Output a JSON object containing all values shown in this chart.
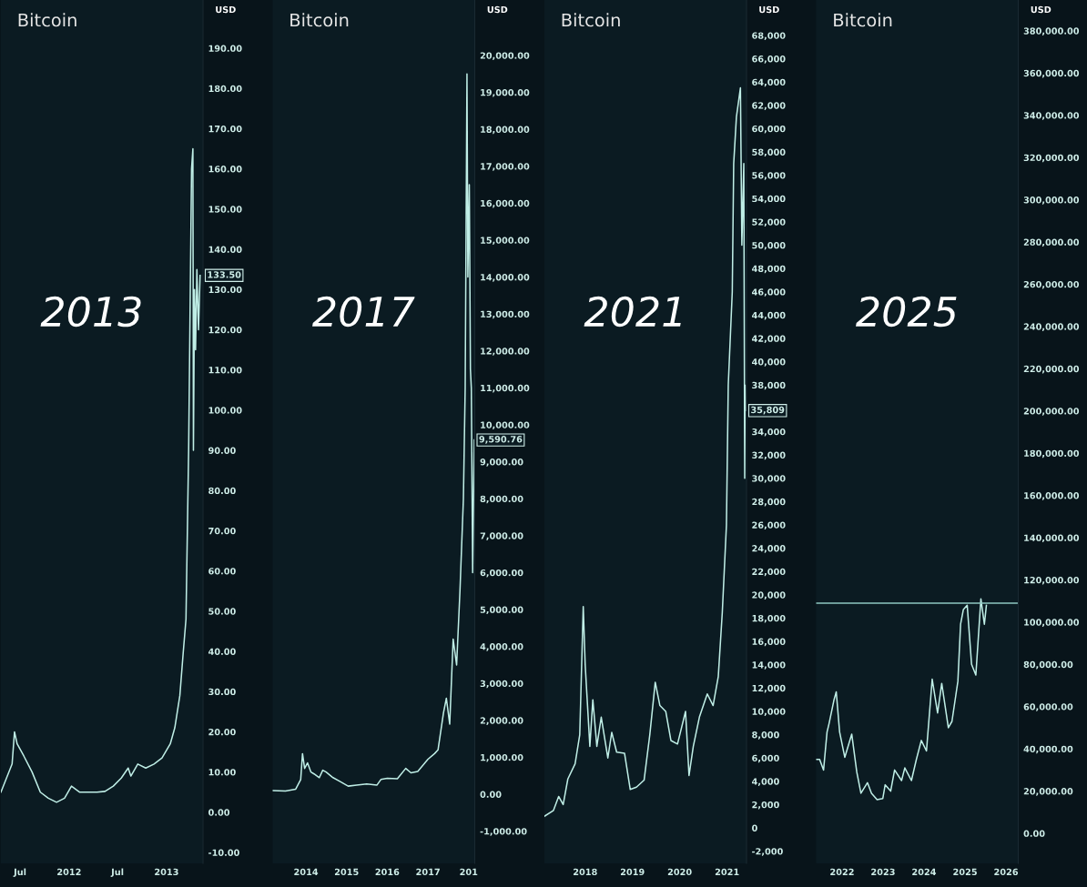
{
  "chart_data": [
    {
      "type": "line",
      "title": "Bitcoin",
      "ylabel": "USD",
      "color": "#bfeee6",
      "x": [
        "2011-04-20",
        "2011-06-01",
        "2011-06-10",
        "2011-06-20",
        "2011-07-15",
        "2011-08-15",
        "2011-09-15",
        "2011-10-15",
        "2011-11-15",
        "2011-12-15",
        "2012-01-10",
        "2012-02-10",
        "2012-03-15",
        "2012-04-15",
        "2012-05-15",
        "2012-06-15",
        "2012-07-15",
        "2012-08-10",
        "2012-08-20",
        "2012-09-15",
        "2012-10-15",
        "2012-11-15",
        "2012-12-15",
        "2013-01-15",
        "2013-02-01",
        "2013-02-20",
        "2013-03-05",
        "2013-03-15",
        "2013-03-25",
        "2013-04-01",
        "2013-04-05",
        "2013-04-10",
        "2013-04-12",
        "2013-04-16",
        "2013-04-20",
        "2013-04-25",
        "2013-05-01",
        "2013-05-07"
      ],
      "values": [
        5,
        12,
        20,
        17,
        14,
        10,
        5,
        3.5,
        2.5,
        3.5,
        6.5,
        5,
        5,
        5,
        5.2,
        6.5,
        8.5,
        11,
        9,
        12,
        11,
        12,
        13.5,
        17,
        21,
        29,
        40,
        48,
        90,
        135,
        160,
        165,
        90,
        130,
        115,
        135,
        120,
        133.5
      ],
      "xlim": [
        "2011-04-20",
        "2013-05-18"
      ],
      "ylim": [
        -12.7,
        202
      ],
      "xticks": [
        {
          "value": "2011-07-01",
          "label": "Jul"
        },
        {
          "value": "2012-01-01",
          "label": "2012"
        },
        {
          "value": "2012-07-01",
          "label": "Jul"
        },
        {
          "value": "2013-01-01",
          "label": "2013"
        }
      ],
      "yticks": [
        {
          "value": -10,
          "label": "-10.00"
        },
        {
          "value": 0,
          "label": "0.00"
        },
        {
          "value": 10,
          "label": "10.00"
        },
        {
          "value": 20,
          "label": "20.00"
        },
        {
          "value": 30,
          "label": "30.00"
        },
        {
          "value": 40,
          "label": "40.00"
        },
        {
          "value": 50,
          "label": "50.00"
        },
        {
          "value": 60,
          "label": "60.00"
        },
        {
          "value": 70,
          "label": "70.00"
        },
        {
          "value": 80,
          "label": "80.00"
        },
        {
          "value": 90,
          "label": "90.00"
        },
        {
          "value": 100,
          "label": "100.00"
        },
        {
          "value": 110,
          "label": "110.00"
        },
        {
          "value": 120,
          "label": "120.00"
        },
        {
          "value": 130,
          "label": "130.00"
        },
        {
          "value": 140,
          "label": "140.00"
        },
        {
          "value": 150,
          "label": "150.00"
        },
        {
          "value": 160,
          "label": "160.00"
        },
        {
          "value": 170,
          "label": "170.00"
        },
        {
          "value": 180,
          "label": "180.00"
        },
        {
          "value": 190,
          "label": "190.00"
        }
      ],
      "annotations": [
        "2013",
        {
          "text": "133.50",
          "x": "2013-05-07",
          "y": 133.5
        }
      ]
    },
    {
      "type": "line",
      "title": "Bitcoin",
      "ylabel": "USD",
      "color": "#bfeee6",
      "x": [
        "2013-03-08",
        "2013-07-01",
        "2013-10-01",
        "2013-11-15",
        "2013-12-01",
        "2013-12-20",
        "2014-01-15",
        "2014-02-15",
        "2014-03-15",
        "2014-05-01",
        "2014-06-01",
        "2014-07-01",
        "2014-09-01",
        "2014-11-01",
        "2015-01-15",
        "2015-04-01",
        "2015-07-01",
        "2015-10-01",
        "2015-11-05",
        "2016-01-01",
        "2016-04-01",
        "2016-06-15",
        "2016-08-01",
        "2016-10-01",
        "2017-01-01",
        "2017-03-01",
        "2017-04-01",
        "2017-05-20",
        "2017-06-15",
        "2017-07-15",
        "2017-08-15",
        "2017-09-15",
        "2017-10-15",
        "2017-11-15",
        "2017-12-01",
        "2017-12-17",
        "2017-12-25",
        "2018-01-07",
        "2018-01-17",
        "2018-01-25",
        "2018-02-06",
        "2018-02-20"
      ],
      "values": [
        100,
        90,
        140,
        400,
        1100,
        700,
        850,
        600,
        550,
        450,
        650,
        600,
        450,
        350,
        220,
        250,
        280,
        250,
        400,
        430,
        420,
        700,
        580,
        620,
        950,
        1100,
        1200,
        2200,
        2600,
        1900,
        4200,
        3500,
        5500,
        8000,
        11000,
        19500,
        14000,
        16500,
        11500,
        11000,
        6000,
        9590.76
      ],
      "xlim": [
        "2013-03-08",
        "2018-02-25"
      ],
      "ylim": [
        -1870,
        21500
      ],
      "xticks": [
        {
          "value": "2014-01-01",
          "label": "2014"
        },
        {
          "value": "2015-01-01",
          "label": "2015"
        },
        {
          "value": "2016-01-01",
          "label": "2016"
        },
        {
          "value": "2017-01-01",
          "label": "2017"
        },
        {
          "value": "2018-01-01",
          "label": "201"
        }
      ],
      "yticks": [
        {
          "value": -1000,
          "label": "-1,000.00"
        },
        {
          "value": 0,
          "label": "0.00"
        },
        {
          "value": 1000,
          "label": "1,000.00"
        },
        {
          "value": 2000,
          "label": "2,000.00"
        },
        {
          "value": 3000,
          "label": "3,000.00"
        },
        {
          "value": 4000,
          "label": "4,000.00"
        },
        {
          "value": 5000,
          "label": "5,000.00"
        },
        {
          "value": 6000,
          "label": "6,000.00"
        },
        {
          "value": 7000,
          "label": "7,000.00"
        },
        {
          "value": 8000,
          "label": "8,000.00"
        },
        {
          "value": 9000,
          "label": "9,000.00"
        },
        {
          "value": 10000,
          "label": "10,000.00"
        },
        {
          "value": 11000,
          "label": "11,000.00"
        },
        {
          "value": 12000,
          "label": "12,000.00"
        },
        {
          "value": 13000,
          "label": "13,000.00"
        },
        {
          "value": 14000,
          "label": "14,000.00"
        },
        {
          "value": 15000,
          "label": "15,000.00"
        },
        {
          "value": 16000,
          "label": "16,000.00"
        },
        {
          "value": 17000,
          "label": "17,000.00"
        },
        {
          "value": 18000,
          "label": "18,000.00"
        },
        {
          "value": 19000,
          "label": "19,000.00"
        },
        {
          "value": 20000,
          "label": "20,000.00"
        }
      ],
      "annotations": [
        "2017",
        {
          "text": "9,590.76",
          "x": "2018-02-20",
          "y": 9590.76
        }
      ]
    },
    {
      "type": "line",
      "title": "Bitcoin",
      "ylabel": "USD",
      "color": "#bfeee6",
      "x": [
        "2017-02-20",
        "2017-05-01",
        "2017-06-10",
        "2017-07-15",
        "2017-08-20",
        "2017-10-15",
        "2017-11-20",
        "2017-12-17",
        "2018-01-01",
        "2018-02-06",
        "2018-03-01",
        "2018-04-01",
        "2018-05-05",
        "2018-06-25",
        "2018-07-25",
        "2018-09-01",
        "2018-11-01",
        "2018-12-15",
        "2019-02-01",
        "2019-04-01",
        "2019-05-15",
        "2019-06-26",
        "2019-08-01",
        "2019-09-15",
        "2019-10-25",
        "2019-12-15",
        "2020-02-15",
        "2020-03-13",
        "2020-04-15",
        "2020-06-01",
        "2020-08-01",
        "2020-09-15",
        "2020-10-25",
        "2020-11-25",
        "2020-12-27",
        "2021-01-10",
        "2021-02-10",
        "2021-02-21",
        "2021-03-14",
        "2021-04-14",
        "2021-04-25",
        "2021-05-10",
        "2021-05-17",
        "2021-05-20",
        "2021-05-24"
      ],
      "values": [
        1000,
        1500,
        2700,
        2000,
        4200,
        5500,
        8000,
        19000,
        14000,
        7000,
        11000,
        7000,
        9500,
        6000,
        8200,
        6500,
        6400,
        3300,
        3500,
        4100,
        8000,
        12500,
        10500,
        10000,
        7500,
        7200,
        10000,
        4500,
        7000,
        9500,
        11500,
        10500,
        13000,
        18500,
        26000,
        38000,
        46000,
        57000,
        61000,
        63500,
        50000,
        57000,
        30000,
        38000,
        35809
      ],
      "xlim": [
        "2017-02-20",
        "2021-05-31"
      ],
      "ylim": [
        -3040,
        71040
      ],
      "xticks": [
        {
          "value": "2018-01-01",
          "label": "2018"
        },
        {
          "value": "2019-01-01",
          "label": "2019"
        },
        {
          "value": "2020-01-01",
          "label": "2020"
        },
        {
          "value": "2021-01-01",
          "label": "2021"
        }
      ],
      "yticks": [
        {
          "value": -2000,
          "label": "-2,000"
        },
        0,
        {
          "value": 2000,
          "label": "2,000"
        },
        {
          "value": 4000,
          "label": "4,000"
        },
        {
          "value": 6000,
          "label": "6,000"
        },
        {
          "value": 8000,
          "label": "8,000"
        },
        {
          "value": 10000,
          "label": "10,000"
        },
        {
          "value": 12000,
          "label": "12,000"
        },
        {
          "value": 14000,
          "label": "14,000"
        },
        {
          "value": 16000,
          "label": "16,000"
        },
        {
          "value": 18000,
          "label": "18,000"
        },
        {
          "value": 20000,
          "label": "20,000"
        },
        {
          "value": 22000,
          "label": "22,000"
        },
        {
          "value": 24000,
          "label": "24,000"
        },
        {
          "value": 26000,
          "label": "26,000"
        },
        {
          "value": 28000,
          "label": "28,000"
        },
        {
          "value": 30000,
          "label": "30,000"
        },
        {
          "value": 32000,
          "label": "32,000"
        },
        {
          "value": 34000,
          "label": "34,000"
        },
        {
          "value": 38000,
          "label": "38,000"
        },
        {
          "value": 40000,
          "label": "40,000"
        },
        {
          "value": 42000,
          "label": "42,000"
        },
        {
          "value": 44000,
          "label": "44,000"
        },
        {
          "value": 46000,
          "label": "46,000"
        },
        {
          "value": 48000,
          "label": "48,000"
        },
        {
          "value": 50000,
          "label": "50,000"
        },
        {
          "value": 52000,
          "label": "52,000"
        },
        {
          "value": 54000,
          "label": "54,000"
        },
        {
          "value": 56000,
          "label": "56,000"
        },
        {
          "value": 58000,
          "label": "58,000"
        },
        {
          "value": 60000,
          "label": "60,000"
        },
        {
          "value": 62000,
          "label": "62,000"
        },
        {
          "value": 64000,
          "label": "64,000"
        },
        {
          "value": 66000,
          "label": "66,000"
        },
        {
          "value": 68000,
          "label": "68,000"
        }
      ],
      "annotations": [
        "2021",
        {
          "text": "35,809",
          "x": "2021-05-24",
          "y": 35809
        }
      ]
    },
    {
      "type": "line",
      "title": "Bitcoin",
      "ylabel": "USD",
      "color": "#bfeee6",
      "x": [
        "2021-05-15",
        "2021-06-15",
        "2021-07-20",
        "2021-08-20",
        "2021-09-07",
        "2021-10-20",
        "2021-11-10",
        "2021-12-10",
        "2022-01-25",
        "2022-03-28",
        "2022-05-12",
        "2022-06-18",
        "2022-08-15",
        "2022-09-20",
        "2022-11-09",
        "2022-12-30",
        "2023-01-20",
        "2023-03-10",
        "2023-04-14",
        "2023-06-15",
        "2023-07-14",
        "2023-09-11",
        "2023-10-25",
        "2023-12-08",
        "2024-01-23",
        "2024-03-14",
        "2024-05-01",
        "2024-06-07",
        "2024-08-05",
        "2024-09-06",
        "2024-10-29",
        "2024-11-22",
        "2024-12-17",
        "2025-01-20",
        "2025-02-28",
        "2025-04-07",
        "2025-05-22",
        "2025-06-22",
        "2025-07-10"
      ],
      "values": [
        35000,
        35000,
        30000,
        48000,
        52000,
        63000,
        67000,
        48000,
        36000,
        47000,
        29000,
        19000,
        24000,
        19000,
        16000,
        16500,
        23000,
        20000,
        30000,
        25000,
        31000,
        25000,
        35000,
        44000,
        39000,
        73000,
        57000,
        71000,
        50000,
        53000,
        72000,
        99000,
        106000,
        108000,
        80000,
        75000,
        111000,
        99000,
        108000
      ],
      "xlim": [
        "2021-05-15",
        "2026-04-20"
      ],
      "ylim": [
        -14200,
        394600
      ],
      "xticks": [
        {
          "value": "2022-01-01",
          "label": "2022"
        },
        {
          "value": "2023-01-01",
          "label": "2023"
        },
        {
          "value": "2024-01-01",
          "label": "2024"
        },
        {
          "value": "2025-01-01",
          "label": "2025"
        },
        {
          "value": "2026-01-01",
          "label": "2026"
        }
      ],
      "yticks": [
        {
          "value": 0,
          "label": "0.00"
        },
        {
          "value": 20000,
          "label": "20,000.00"
        },
        {
          "value": 40000,
          "label": "40,000.00"
        },
        {
          "value": 60000,
          "label": "60,000.00"
        },
        {
          "value": 80000,
          "label": "80,000.00"
        },
        {
          "value": 100000,
          "label": "100,000.00"
        },
        {
          "value": 120000,
          "label": "120,000.00"
        },
        {
          "value": 140000,
          "label": "140,000.00"
        },
        {
          "value": 160000,
          "label": "160,000.00"
        },
        {
          "value": 180000,
          "label": "180,000.00"
        },
        {
          "value": 200000,
          "label": "200,000.00"
        },
        {
          "value": 220000,
          "label": "220,000.00"
        },
        {
          "value": 240000,
          "label": "240,000.00"
        },
        {
          "value": 260000,
          "label": "260,000.00"
        },
        {
          "value": 280000,
          "label": "280,000.00"
        },
        {
          "value": 300000,
          "label": "300,000.00"
        },
        {
          "value": 320000,
          "label": "320,000.00"
        },
        {
          "value": 340000,
          "label": "340,000.00"
        },
        {
          "value": 360000,
          "label": "360,000.00"
        },
        {
          "value": 380000,
          "label": "380,000.00"
        }
      ],
      "ref_lines": [
        {
          "axis": "y",
          "value": 109000,
          "color": "#8fc9c2",
          "line_style": "solid"
        }
      ],
      "annotations": [
        "2025"
      ]
    }
  ]
}
